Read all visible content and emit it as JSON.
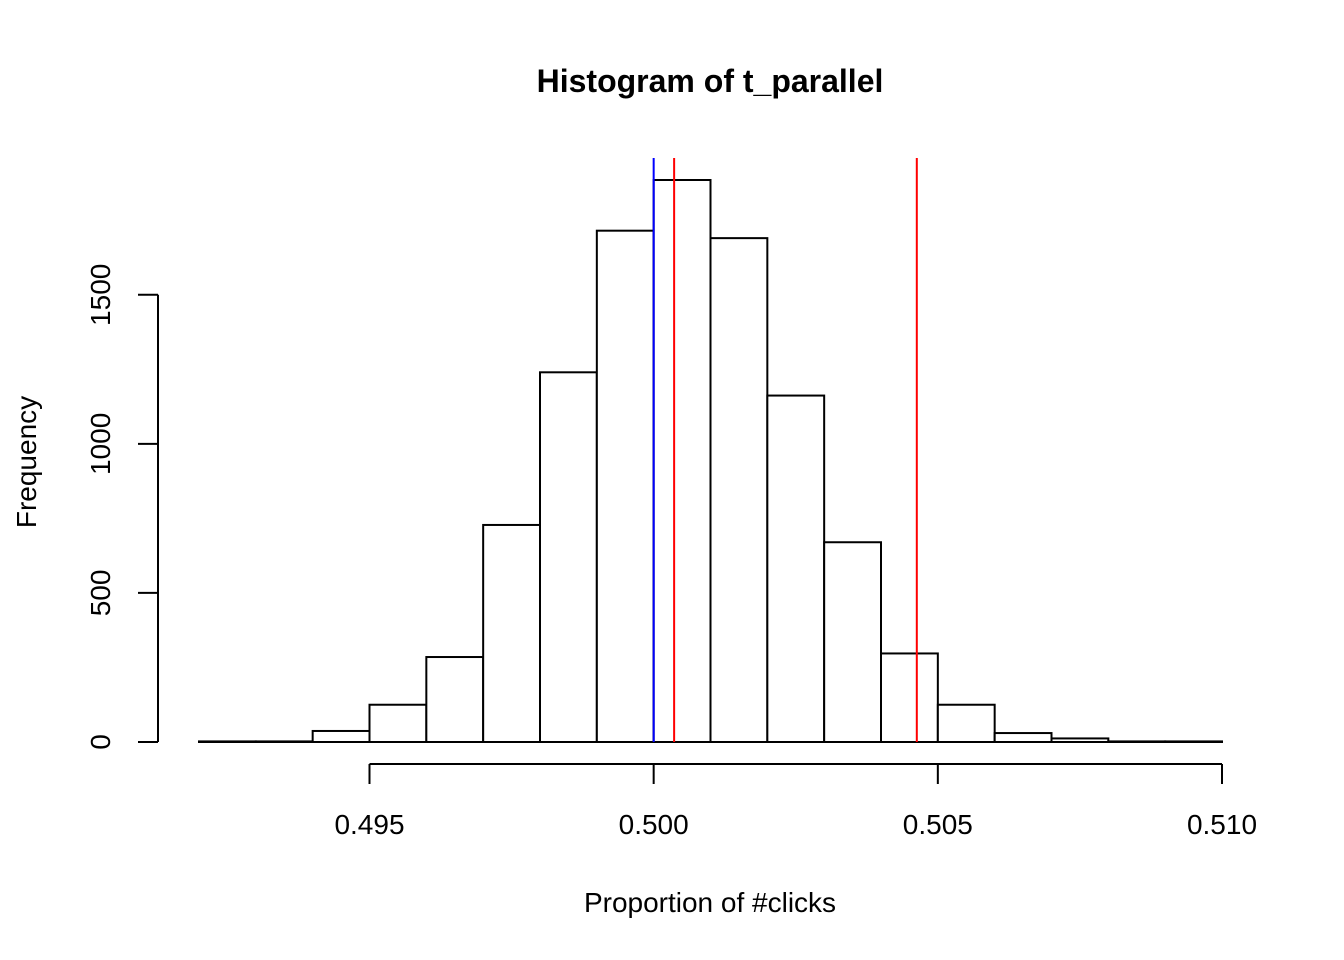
{
  "chart_data": {
    "type": "bar",
    "title": "Histogram of t_parallel",
    "xlabel": "Proportion of #clicks",
    "ylabel": "Frequency",
    "bin_edges": [
      0.492,
      0.493,
      0.494,
      0.495,
      0.496,
      0.497,
      0.498,
      0.499,
      0.5,
      0.501,
      0.502,
      0.503,
      0.504,
      0.505,
      0.506,
      0.507,
      0.508,
      0.509,
      0.51
    ],
    "values": [
      2,
      2,
      37,
      125,
      285,
      728,
      1240,
      1715,
      1885,
      1690,
      1162,
      670,
      297,
      125,
      30,
      12,
      2,
      2
    ],
    "xlim": [
      0.492,
      0.51
    ],
    "ylim": [
      0,
      1885
    ],
    "x_ticks": [
      0.495,
      0.5,
      0.505,
      0.51
    ],
    "x_tick_labels": [
      "0.495",
      "0.500",
      "0.505",
      "0.510"
    ],
    "y_ticks": [
      0,
      500,
      1000,
      1500
    ],
    "y_tick_labels": [
      "0",
      "500",
      "1000",
      "1500"
    ],
    "vlines": [
      {
        "x": 0.50036,
        "color": "#ff0000"
      },
      {
        "x": 0.5,
        "color": "#0000ff"
      },
      {
        "x": 0.50463,
        "color": "#ff0000"
      }
    ]
  }
}
